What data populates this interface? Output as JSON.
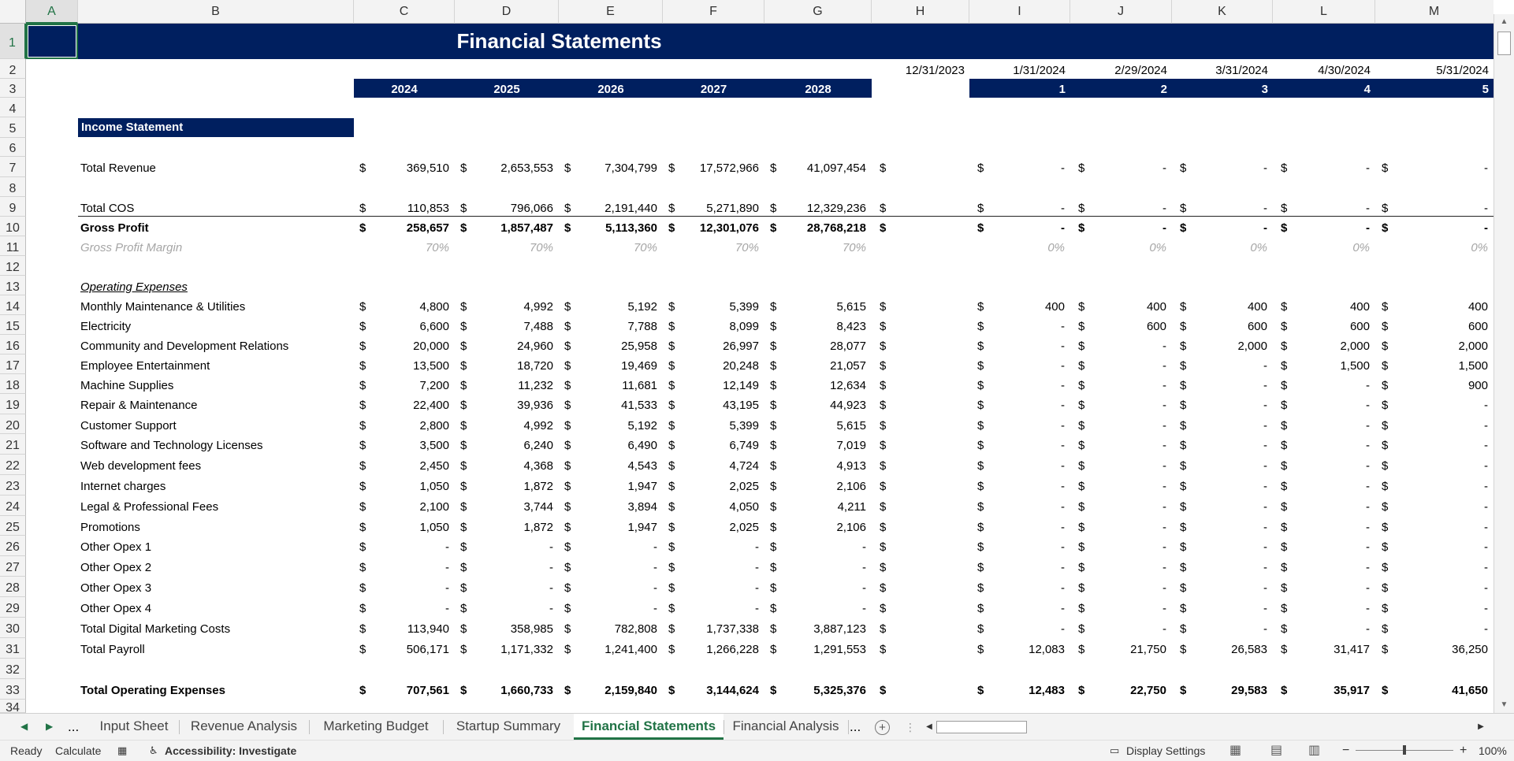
{
  "app": {
    "title": "Financial Statements"
  },
  "columns": [
    "A",
    "B",
    "C",
    "D",
    "E",
    "F",
    "G",
    "H",
    "I",
    "J",
    "K",
    "L",
    "M"
  ],
  "rows": [
    "1",
    "2",
    "3",
    "4",
    "5",
    "6",
    "7",
    "8",
    "9",
    "10",
    "11",
    "12",
    "13",
    "14",
    "15",
    "16",
    "17",
    "18",
    "19",
    "20",
    "21",
    "22",
    "23",
    "24",
    "25",
    "26",
    "27",
    "28",
    "29",
    "30",
    "31",
    "32",
    "33",
    "34"
  ],
  "sheet": {
    "title": "Financial Statements",
    "section_label": "Income Statement",
    "years": [
      "2024",
      "2025",
      "2026",
      "2027",
      "2028"
    ],
    "dates": [
      "12/31/2023",
      "1/31/2024",
      "2/29/2024",
      "3/31/2024",
      "4/30/2024",
      "5/31/2024"
    ],
    "periods": [
      "1",
      "2",
      "3",
      "4",
      "5"
    ],
    "currency_symbol": "$",
    "opex_header": "Operating Expenses",
    "lines": [
      {
        "row": 7,
        "label": "Total Revenue",
        "style": "normal",
        "annual": [
          "369,510",
          "2,653,553",
          "7,304,799",
          "17,572,966",
          "41,097,454"
        ],
        "monthly": [
          "-",
          "-",
          "-",
          "-",
          "-"
        ]
      },
      {
        "row": 9,
        "label": "Total COS",
        "style": "normal",
        "annual": [
          "110,853",
          "796,066",
          "2,191,440",
          "5,271,890",
          "12,329,236"
        ],
        "monthly": [
          "-",
          "-",
          "-",
          "-",
          "-"
        ]
      },
      {
        "row": 10,
        "label": "Gross Profit",
        "style": "bold",
        "annual": [
          "258,657",
          "1,857,487",
          "5,113,360",
          "12,301,076",
          "28,768,218"
        ],
        "monthly": [
          "-",
          "-",
          "-",
          "-",
          "-"
        ]
      },
      {
        "row": 11,
        "label": "Gross Profit Margin",
        "style": "pct",
        "annual": [
          "70%",
          "70%",
          "70%",
          "70%",
          "70%"
        ],
        "monthly": [
          "0%",
          "0%",
          "0%",
          "0%",
          "0%"
        ]
      },
      {
        "row": 14,
        "label": "Monthly Maintenance & Utilities",
        "style": "normal",
        "annual": [
          "4,800",
          "4,992",
          "5,192",
          "5,399",
          "5,615"
        ],
        "monthly": [
          "400",
          "400",
          "400",
          "400",
          "400"
        ]
      },
      {
        "row": 15,
        "label": "Electricity",
        "style": "normal",
        "annual": [
          "6,600",
          "7,488",
          "7,788",
          "8,099",
          "8,423"
        ],
        "monthly": [
          "-",
          "600",
          "600",
          "600",
          "600"
        ]
      },
      {
        "row": 16,
        "label": "Community and Development Relations",
        "style": "normal",
        "annual": [
          "20,000",
          "24,960",
          "25,958",
          "26,997",
          "28,077"
        ],
        "monthly": [
          "-",
          "-",
          "2,000",
          "2,000",
          "2,000"
        ]
      },
      {
        "row": 17,
        "label": "Employee Entertainment",
        "style": "normal",
        "annual": [
          "13,500",
          "18,720",
          "19,469",
          "20,248",
          "21,057"
        ],
        "monthly": [
          "-",
          "-",
          "-",
          "1,500",
          "1,500"
        ]
      },
      {
        "row": 18,
        "label": "Machine Supplies",
        "style": "normal",
        "annual": [
          "7,200",
          "11,232",
          "11,681",
          "12,149",
          "12,634"
        ],
        "monthly": [
          "-",
          "-",
          "-",
          "-",
          "900"
        ]
      },
      {
        "row": 19,
        "label": "Repair & Maintenance",
        "style": "normal",
        "annual": [
          "22,400",
          "39,936",
          "41,533",
          "43,195",
          "44,923"
        ],
        "monthly": [
          "-",
          "-",
          "-",
          "-",
          "-"
        ]
      },
      {
        "row": 20,
        "label": "Customer Support",
        "style": "normal",
        "annual": [
          "2,800",
          "4,992",
          "5,192",
          "5,399",
          "5,615"
        ],
        "monthly": [
          "-",
          "-",
          "-",
          "-",
          "-"
        ]
      },
      {
        "row": 21,
        "label": "Software and Technology Licenses",
        "style": "normal",
        "annual": [
          "3,500",
          "6,240",
          "6,490",
          "6,749",
          "7,019"
        ],
        "monthly": [
          "-",
          "-",
          "-",
          "-",
          "-"
        ]
      },
      {
        "row": 22,
        "label": "Web development fees",
        "style": "normal",
        "annual": [
          "2,450",
          "4,368",
          "4,543",
          "4,724",
          "4,913"
        ],
        "monthly": [
          "-",
          "-",
          "-",
          "-",
          "-"
        ]
      },
      {
        "row": 23,
        "label": "Internet charges",
        "style": "normal",
        "annual": [
          "1,050",
          "1,872",
          "1,947",
          "2,025",
          "2,106"
        ],
        "monthly": [
          "-",
          "-",
          "-",
          "-",
          "-"
        ]
      },
      {
        "row": 24,
        "label": "Legal & Professional Fees",
        "style": "normal",
        "annual": [
          "2,100",
          "3,744",
          "3,894",
          "4,050",
          "4,211"
        ],
        "monthly": [
          "-",
          "-",
          "-",
          "-",
          "-"
        ]
      },
      {
        "row": 25,
        "label": "Promotions",
        "style": "normal",
        "annual": [
          "1,050",
          "1,872",
          "1,947",
          "2,025",
          "2,106"
        ],
        "monthly": [
          "-",
          "-",
          "-",
          "-",
          "-"
        ]
      },
      {
        "row": 26,
        "label": "Other Opex 1",
        "style": "normal",
        "annual": [
          "-",
          "-",
          "-",
          "-",
          "-"
        ],
        "monthly": [
          "-",
          "-",
          "-",
          "-",
          "-"
        ]
      },
      {
        "row": 27,
        "label": "Other Opex 2",
        "style": "normal",
        "annual": [
          "-",
          "-",
          "-",
          "-",
          "-"
        ],
        "monthly": [
          "-",
          "-",
          "-",
          "-",
          "-"
        ]
      },
      {
        "row": 28,
        "label": "Other Opex 3",
        "style": "normal",
        "annual": [
          "-",
          "-",
          "-",
          "-",
          "-"
        ],
        "monthly": [
          "-",
          "-",
          "-",
          "-",
          "-"
        ]
      },
      {
        "row": 29,
        "label": "Other Opex 4",
        "style": "normal",
        "annual": [
          "-",
          "-",
          "-",
          "-",
          "-"
        ],
        "monthly": [
          "-",
          "-",
          "-",
          "-",
          "-"
        ]
      },
      {
        "row": 30,
        "label": "Total Digital Marketing Costs",
        "style": "normal",
        "annual": [
          "113,940",
          "358,985",
          "782,808",
          "1,737,338",
          "3,887,123"
        ],
        "monthly": [
          "-",
          "-",
          "-",
          "-",
          "-"
        ]
      },
      {
        "row": 31,
        "label": "Total Payroll",
        "style": "normal",
        "annual": [
          "506,171",
          "1,171,332",
          "1,241,400",
          "1,266,228",
          "1,291,553"
        ],
        "monthly": [
          "12,083",
          "21,750",
          "26,583",
          "31,417",
          "36,250"
        ]
      },
      {
        "row": 33,
        "label": "Total Operating Expenses",
        "style": "bold",
        "annual": [
          "707,561",
          "1,660,733",
          "2,159,840",
          "3,144,624",
          "5,325,376"
        ],
        "monthly": [
          "12,483",
          "22,750",
          "29,583",
          "35,917",
          "41,650"
        ]
      }
    ]
  },
  "tabs": {
    "nav_more": "...",
    "items": [
      "Input Sheet",
      "Revenue Analysis",
      "Marketing Budget",
      "Startup Summary",
      "Financial Statements",
      "Financial Analysis"
    ],
    "active": "Financial Statements",
    "overflow": "..."
  },
  "status": {
    "ready": "Ready",
    "calculate": "Calculate",
    "accessibility": "Accessibility: Investigate",
    "display_settings": "Display Settings",
    "zoom": "100%"
  },
  "colors": {
    "navy": "#001f5f",
    "accent_green": "#217346"
  }
}
